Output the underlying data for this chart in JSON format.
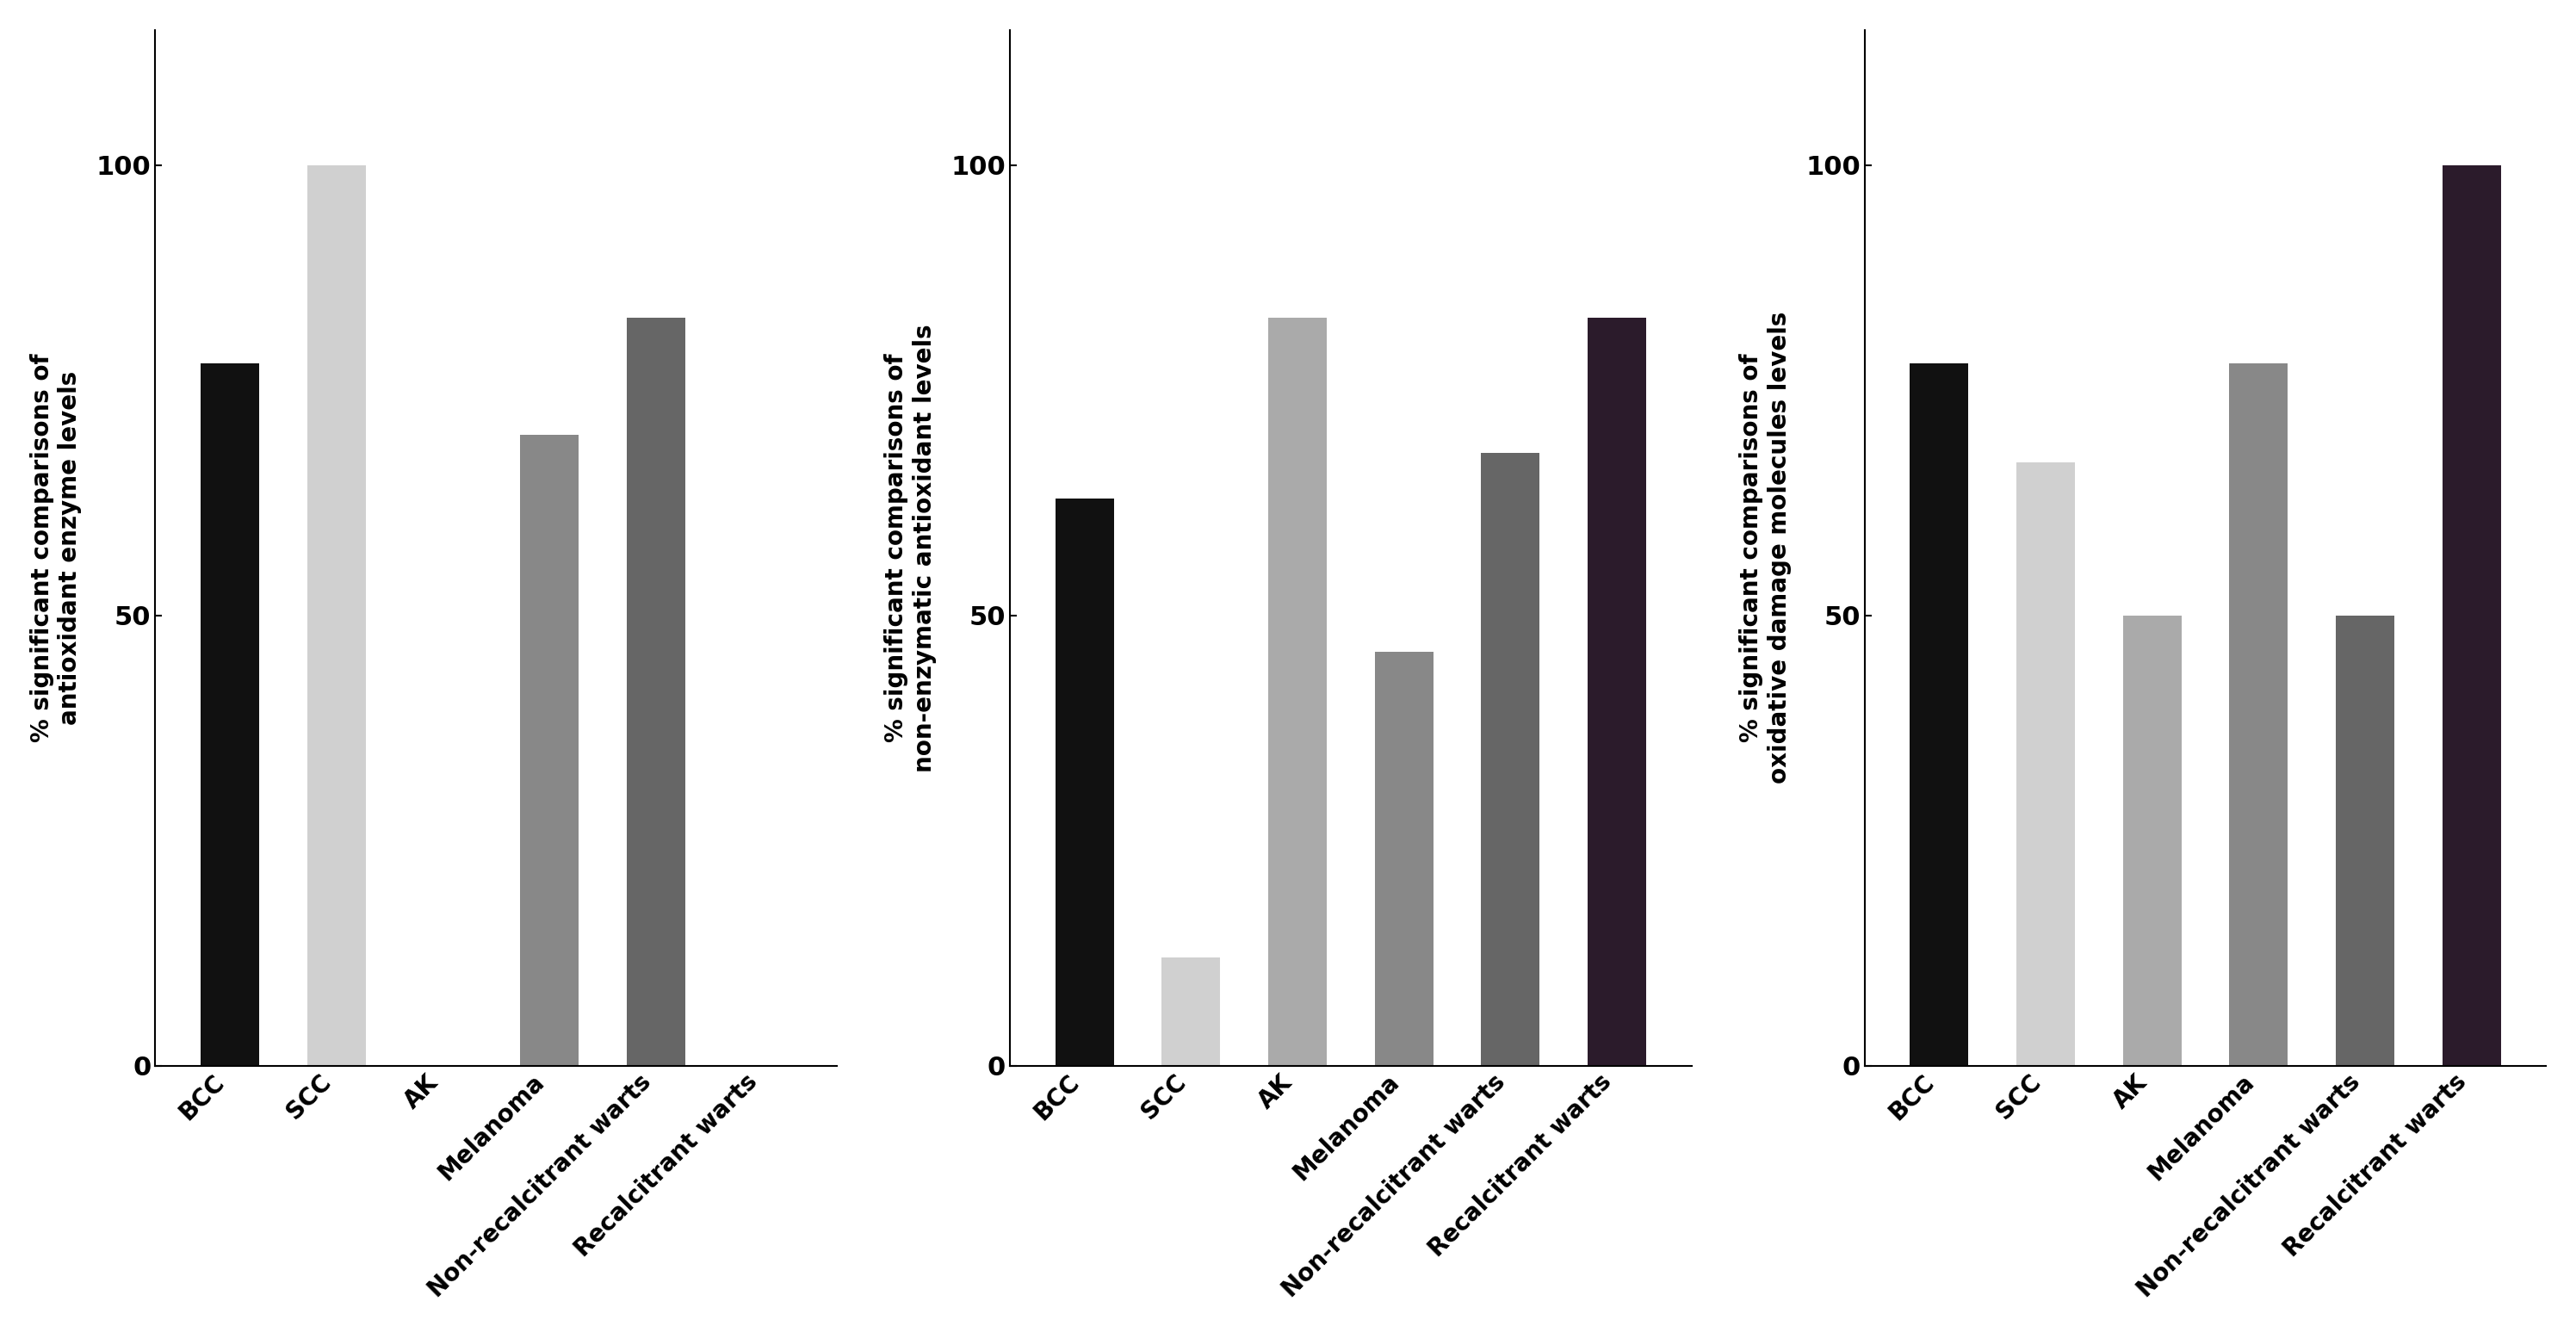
{
  "charts": [
    {
      "ylabel": "% significant comparisons of\nantioxidant enzyme levels",
      "categories": [
        "BCC",
        "SCC",
        "AK",
        "Melanoma",
        "Non-recalcitrant warts",
        "Recalcitrant warts"
      ],
      "values": [
        78,
        100,
        0,
        70,
        83,
        0
      ],
      "colors": [
        "#111111",
        "#d0d0d0",
        "#888888",
        "#888888",
        "#666666",
        "#2b1b2b"
      ],
      "ylim": [
        0,
        115
      ],
      "yticks": [
        0,
        50,
        100
      ]
    },
    {
      "ylabel": "% significant comparisons of\nnon-enzymatic antioxidant levels",
      "categories": [
        "BCC",
        "SCC",
        "AK",
        "Melanoma",
        "Non-recalcitrant warts",
        "Recalcitrant warts"
      ],
      "values": [
        63,
        12,
        83,
        46,
        68,
        83
      ],
      "colors": [
        "#111111",
        "#d0d0d0",
        "#aaaaaa",
        "#888888",
        "#666666",
        "#2b1b2b"
      ],
      "ylim": [
        0,
        115
      ],
      "yticks": [
        0,
        50,
        100
      ]
    },
    {
      "ylabel": "% significant comparisons of\noxidative damage molecules levels",
      "categories": [
        "BCC",
        "SCC",
        "AK",
        "Melanoma",
        "Non-recalcitrant warts",
        "Recalcitrant warts"
      ],
      "values": [
        78,
        67,
        50,
        78,
        50,
        100
      ],
      "colors": [
        "#111111",
        "#d0d0d0",
        "#aaaaaa",
        "#888888",
        "#666666",
        "#2b1b2b"
      ],
      "ylim": [
        0,
        115
      ],
      "yticks": [
        0,
        50,
        100
      ]
    }
  ],
  "background_color": "#ffffff",
  "bar_width": 0.55,
  "tick_fontsize": 22,
  "ylabel_fontsize": 20,
  "xlabel_rotation": 45,
  "xlabel_ha": "right",
  "xlabel_fontsize": 20
}
